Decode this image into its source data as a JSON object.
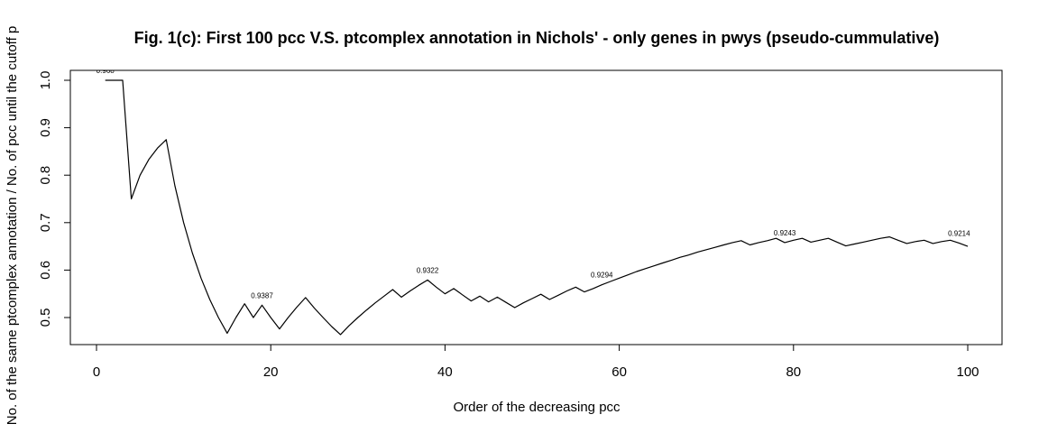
{
  "chart_data": {
    "type": "line",
    "title": "Fig. 1(c): First 100 pcc V.S. ptcomplex annotation in Nichols' - only genes in pwys (pseudo-cummulative)",
    "xlabel": "Order of the decreasing pcc",
    "ylabel": "No. of the same ptcomplex annotation / No. of pcc until the  cutoff p",
    "xlim": [
      0,
      100
    ],
    "ylim": [
      0.46,
      1.0
    ],
    "x_ticks": [
      0,
      20,
      40,
      60,
      80,
      100
    ],
    "y_ticks": [
      0.5,
      0.6,
      0.7,
      0.8,
      0.9,
      1.0
    ],
    "x_tick_labels": [
      "0",
      "20",
      "40",
      "60",
      "80",
      "100"
    ],
    "y_tick_labels": [
      "0.5",
      "0.6",
      "0.7",
      "0.8",
      "0.9",
      "1.0"
    ],
    "series": [
      {
        "x": [
          1,
          2,
          3,
          4,
          5,
          6,
          7,
          8,
          9,
          10,
          11,
          12,
          13,
          14,
          15,
          16,
          17,
          18,
          19,
          20,
          21,
          22,
          23,
          24,
          25,
          26,
          27,
          28,
          29,
          30,
          31,
          32,
          33,
          34,
          35,
          36,
          37,
          38,
          39,
          40,
          41,
          42,
          43,
          44,
          45,
          46,
          47,
          48,
          49,
          50,
          51,
          52,
          53,
          54,
          55,
          56,
          57,
          58,
          59,
          60,
          61,
          62,
          63,
          64,
          65,
          66,
          67,
          68,
          69,
          70,
          71,
          72,
          73,
          74,
          75,
          76,
          77,
          78,
          79,
          80,
          81,
          82,
          83,
          84,
          85,
          86,
          87,
          88,
          89,
          90,
          91,
          92,
          93,
          94,
          95,
          96,
          97,
          98,
          99,
          100
        ],
        "y": [
          1.0,
          1.0,
          1.0,
          0.75,
          0.8,
          0.833,
          0.857,
          0.875,
          0.778,
          0.7,
          0.636,
          0.583,
          0.538,
          0.5,
          0.467,
          0.5,
          0.529,
          0.5,
          0.526,
          0.5,
          0.476,
          0.5,
          0.522,
          0.542,
          0.52,
          0.5,
          0.481,
          0.464,
          0.483,
          0.5,
          0.516,
          0.531,
          0.545,
          0.559,
          0.543,
          0.556,
          0.568,
          0.579,
          0.564,
          0.55,
          0.561,
          0.548,
          0.535,
          0.545,
          0.533,
          0.543,
          0.532,
          0.521,
          0.531,
          0.54,
          0.549,
          0.538,
          0.547,
          0.556,
          0.564,
          0.554,
          0.561,
          0.569,
          0.576,
          0.583,
          0.59,
          0.597,
          0.603,
          0.609,
          0.615,
          0.621,
          0.627,
          0.632,
          0.638,
          0.643,
          0.648,
          0.653,
          0.658,
          0.662,
          0.653,
          0.658,
          0.662,
          0.667,
          0.658,
          0.663,
          0.667,
          0.659,
          0.663,
          0.667,
          0.659,
          0.651,
          0.655,
          0.659,
          0.663,
          0.667,
          0.67,
          0.663,
          0.656,
          0.66,
          0.663,
          0.656,
          0.66,
          0.663,
          0.657,
          0.65
        ]
      }
    ],
    "annotations": [
      {
        "x": 1,
        "y": 1.0,
        "text": "0.968"
      },
      {
        "x": 19,
        "y": 0.526,
        "text": "0.9387"
      },
      {
        "x": 38,
        "y": 0.579,
        "text": "0.9322"
      },
      {
        "x": 58,
        "y": 0.569,
        "text": "0.9294"
      },
      {
        "x": 79,
        "y": 0.658,
        "text": "0.9243"
      },
      {
        "x": 99,
        "y": 0.657,
        "text": "0.9214"
      }
    ],
    "grid": false,
    "legend": "none"
  }
}
